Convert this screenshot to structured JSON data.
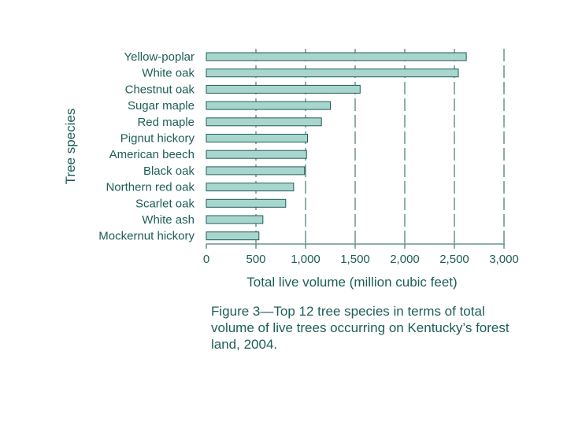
{
  "chart_data": {
    "type": "bar",
    "orientation": "horizontal",
    "categories": [
      "Yellow-poplar",
      "White oak",
      "Chestnut oak",
      "Sugar maple",
      "Red maple",
      "Pignut hickory",
      "American beech",
      "Black oak",
      "Northern red oak",
      "Scarlet oak",
      "White ash",
      "Mockernut hickory"
    ],
    "values": [
      2620,
      2540,
      1550,
      1250,
      1160,
      1020,
      1010,
      990,
      880,
      800,
      570,
      530
    ],
    "xlabel": "Total live volume (million cubic feet)",
    "ylabel": "Tree species",
    "xlim": [
      0,
      3000
    ],
    "xticks": [
      0,
      500,
      1000,
      1500,
      2000,
      2500,
      3000
    ],
    "xtick_labels": [
      "0",
      "500",
      "1,000",
      "1,500",
      "2,000",
      "2,500",
      "3,000"
    ],
    "grid": "vertical dashed",
    "legend": "none"
  },
  "caption": "Figure 3—Top 12 tree species in terms of total volume of live trees occurring on Kentucky’s forest land, 2004.",
  "colors": {
    "text": "#1d5e57",
    "bar_fill": "#a8d6cf",
    "bar_stroke": "#1d5e57",
    "axis": "#1d5e57"
  }
}
